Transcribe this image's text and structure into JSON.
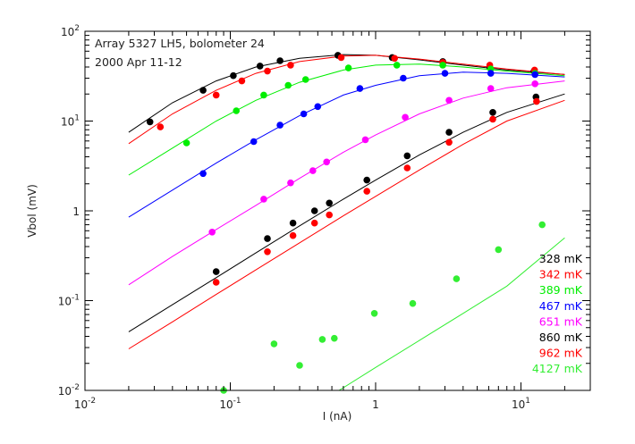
{
  "chart_data": {
    "type": "scatter",
    "title": "",
    "annotations": [
      "Array 5327 LH5, bolometer 24",
      "2000 Apr 11-12"
    ],
    "xlabel": "I (nA)",
    "ylabel": "Vbol (mV)",
    "xscale": "log",
    "yscale": "log",
    "xlim": [
      0.01,
      30
    ],
    "ylim": [
      0.01,
      100
    ],
    "x_ticks": [
      {
        "value": 0.01,
        "base": "10",
        "exp": "-2"
      },
      {
        "value": 0.1,
        "base": "10",
        "exp": "-1"
      },
      {
        "value": 1,
        "base": "1",
        "exp": ""
      },
      {
        "value": 10,
        "base": "10",
        "exp": "1"
      }
    ],
    "y_ticks": [
      {
        "value": 0.01,
        "base": "10",
        "exp": "-2"
      },
      {
        "value": 0.1,
        "base": "10",
        "exp": "-1"
      },
      {
        "value": 1,
        "base": "1",
        "exp": ""
      },
      {
        "value": 10,
        "base": "10",
        "exp": "1"
      },
      {
        "value": 100,
        "base": "10",
        "exp": "2"
      }
    ],
    "legend_position": "bottom-right",
    "grid": false,
    "series": [
      {
        "name": "328 mK",
        "color": "#000000",
        "points": [
          [
            0.028,
            9.8
          ],
          [
            0.065,
            22
          ],
          [
            0.105,
            32
          ],
          [
            0.16,
            41
          ],
          [
            0.22,
            47
          ],
          [
            0.55,
            54
          ],
          [
            1.3,
            51
          ],
          [
            2.9,
            46
          ],
          [
            6.1,
            40
          ],
          [
            12.3,
            36
          ]
        ],
        "fit": [
          [
            0.02,
            7.5
          ],
          [
            0.04,
            16
          ],
          [
            0.08,
            28
          ],
          [
            0.15,
            40
          ],
          [
            0.3,
            50
          ],
          [
            0.6,
            55
          ],
          [
            1,
            54
          ],
          [
            2,
            48
          ],
          [
            4,
            42
          ],
          [
            8,
            37
          ],
          [
            20,
            33
          ]
        ]
      },
      {
        "name": "342 mK",
        "color": "#ff0000",
        "points": [
          [
            0.033,
            8.6
          ],
          [
            0.08,
            19.5
          ],
          [
            0.12,
            28
          ],
          [
            0.18,
            36
          ],
          [
            0.26,
            42
          ],
          [
            0.58,
            51
          ],
          [
            1.35,
            50
          ],
          [
            2.9,
            45
          ],
          [
            6.1,
            42
          ],
          [
            12.4,
            37
          ]
        ],
        "fit": [
          [
            0.02,
            5.6
          ],
          [
            0.04,
            12
          ],
          [
            0.08,
            22
          ],
          [
            0.15,
            34
          ],
          [
            0.3,
            46
          ],
          [
            0.6,
            53
          ],
          [
            1,
            54
          ],
          [
            2,
            49
          ],
          [
            4,
            43
          ],
          [
            8,
            38
          ],
          [
            20,
            33
          ]
        ]
      },
      {
        "name": "389 mK",
        "color": "#00ee00",
        "points": [
          [
            0.05,
            5.7
          ],
          [
            0.11,
            13
          ],
          [
            0.17,
            19.5
          ],
          [
            0.25,
            25
          ],
          [
            0.33,
            29
          ],
          [
            0.65,
            39
          ],
          [
            1.4,
            42
          ],
          [
            2.9,
            42
          ],
          [
            6.2,
            38
          ],
          [
            12.5,
            34
          ]
        ],
        "fit": [
          [
            0.02,
            2.5
          ],
          [
            0.04,
            5
          ],
          [
            0.08,
            10
          ],
          [
            0.15,
            17
          ],
          [
            0.3,
            27
          ],
          [
            0.6,
            37
          ],
          [
            1,
            42
          ],
          [
            2,
            43
          ],
          [
            4,
            40
          ],
          [
            8,
            36
          ],
          [
            20,
            32
          ]
        ]
      },
      {
        "name": "467 mK",
        "color": "#0000ff",
        "points": [
          [
            0.065,
            2.6
          ],
          [
            0.145,
            5.9
          ],
          [
            0.22,
            9
          ],
          [
            0.32,
            12
          ],
          [
            0.4,
            14.5
          ],
          [
            0.78,
            23
          ],
          [
            1.55,
            30
          ],
          [
            3,
            34
          ],
          [
            6.2,
            34
          ],
          [
            12.5,
            33
          ]
        ],
        "fit": [
          [
            0.02,
            0.85
          ],
          [
            0.04,
            1.7
          ],
          [
            0.08,
            3.4
          ],
          [
            0.15,
            6.2
          ],
          [
            0.3,
            11.5
          ],
          [
            0.6,
            19.5
          ],
          [
            1,
            25
          ],
          [
            2,
            32
          ],
          [
            4,
            35
          ],
          [
            8,
            34
          ],
          [
            20,
            31
          ]
        ]
      },
      {
        "name": "651 mK",
        "color": "#ff00ff",
        "points": [
          [
            0.075,
            0.58
          ],
          [
            0.17,
            1.35
          ],
          [
            0.26,
            2.05
          ],
          [
            0.37,
            2.8
          ],
          [
            0.46,
            3.5
          ],
          [
            0.85,
            6.2
          ],
          [
            1.6,
            11
          ],
          [
            3.2,
            17
          ],
          [
            6.2,
            23
          ],
          [
            12.5,
            26
          ]
        ],
        "fit": [
          [
            0.02,
            0.15
          ],
          [
            0.04,
            0.31
          ],
          [
            0.08,
            0.62
          ],
          [
            0.15,
            1.15
          ],
          [
            0.3,
            2.3
          ],
          [
            0.6,
            4.5
          ],
          [
            1,
            7
          ],
          [
            2,
            12
          ],
          [
            4,
            18
          ],
          [
            8,
            23.5
          ],
          [
            20,
            28
          ]
        ]
      },
      {
        "name": "860 mK",
        "color": "#000000",
        "points": [
          [
            0.08,
            0.21
          ],
          [
            0.18,
            0.49
          ],
          [
            0.27,
            0.73
          ],
          [
            0.38,
            1.0
          ],
          [
            0.48,
            1.22
          ],
          [
            0.87,
            2.2
          ],
          [
            1.65,
            4.1
          ],
          [
            3.2,
            7.5
          ],
          [
            6.4,
            12.5
          ],
          [
            12.7,
            18.5
          ]
        ],
        "fit": [
          [
            0.02,
            0.045
          ],
          [
            0.04,
            0.09
          ],
          [
            0.08,
            0.18
          ],
          [
            0.15,
            0.34
          ],
          [
            0.3,
            0.68
          ],
          [
            0.6,
            1.35
          ],
          [
            1,
            2.2
          ],
          [
            2,
            4.2
          ],
          [
            4,
            7.5
          ],
          [
            8,
            12.5
          ],
          [
            20,
            20
          ]
        ]
      },
      {
        "name": "962 mK",
        "color": "#ff0000",
        "points": [
          [
            0.08,
            0.16
          ],
          [
            0.18,
            0.35
          ],
          [
            0.27,
            0.53
          ],
          [
            0.38,
            0.73
          ],
          [
            0.48,
            0.9
          ],
          [
            0.87,
            1.65
          ],
          [
            1.65,
            3.0
          ],
          [
            3.2,
            5.8
          ],
          [
            6.4,
            10.5
          ],
          [
            12.8,
            16.5
          ]
        ],
        "fit": [
          [
            0.02,
            0.029
          ],
          [
            0.04,
            0.058
          ],
          [
            0.08,
            0.117
          ],
          [
            0.15,
            0.22
          ],
          [
            0.3,
            0.44
          ],
          [
            0.6,
            0.88
          ],
          [
            1,
            1.45
          ],
          [
            2,
            2.85
          ],
          [
            4,
            5.5
          ],
          [
            8,
            10
          ],
          [
            20,
            17
          ]
        ]
      },
      {
        "name": "4127 mK",
        "color": "#33ee33",
        "points": [
          [
            0.09,
            0.01
          ],
          [
            0.2,
            0.033
          ],
          [
            0.3,
            0.019
          ],
          [
            0.43,
            0.037
          ],
          [
            0.52,
            0.038
          ],
          [
            0.98,
            0.072
          ],
          [
            1.8,
            0.093
          ],
          [
            3.6,
            0.175
          ],
          [
            7.0,
            0.37
          ],
          [
            14.0,
            0.7
          ]
        ],
        "fit": [
          [
            0.56,
            0.01
          ],
          [
            1,
            0.018
          ],
          [
            2,
            0.036
          ],
          [
            4,
            0.072
          ],
          [
            8,
            0.145
          ],
          [
            20,
            0.5
          ]
        ]
      }
    ]
  }
}
